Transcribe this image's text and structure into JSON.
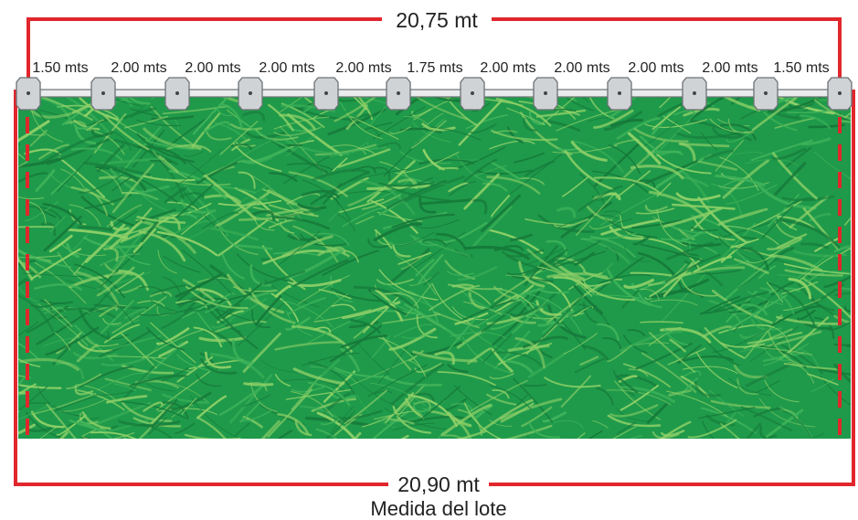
{
  "top_measure": "20,75 mt",
  "bottom_measure": "20,90 mt",
  "caption": "Medida del lote",
  "segments": [
    "1.50 mts",
    "2.00 mts",
    "2.00 mts",
    "2.00 mts",
    "2.00 mts",
    "1.75 mts",
    "2.00 mts",
    "2.00 mts",
    "2.00 mts",
    "2.00 mts",
    "1.50 mts"
  ],
  "colors": {
    "dimension_line": "#e1262c",
    "grass_base": "#1f9a4a",
    "grass_dark": "#167a3a",
    "grass_light": "#8fd068",
    "post": "#cfd3d6",
    "post_stroke": "#6d7276",
    "rail": "#e9ebec"
  }
}
